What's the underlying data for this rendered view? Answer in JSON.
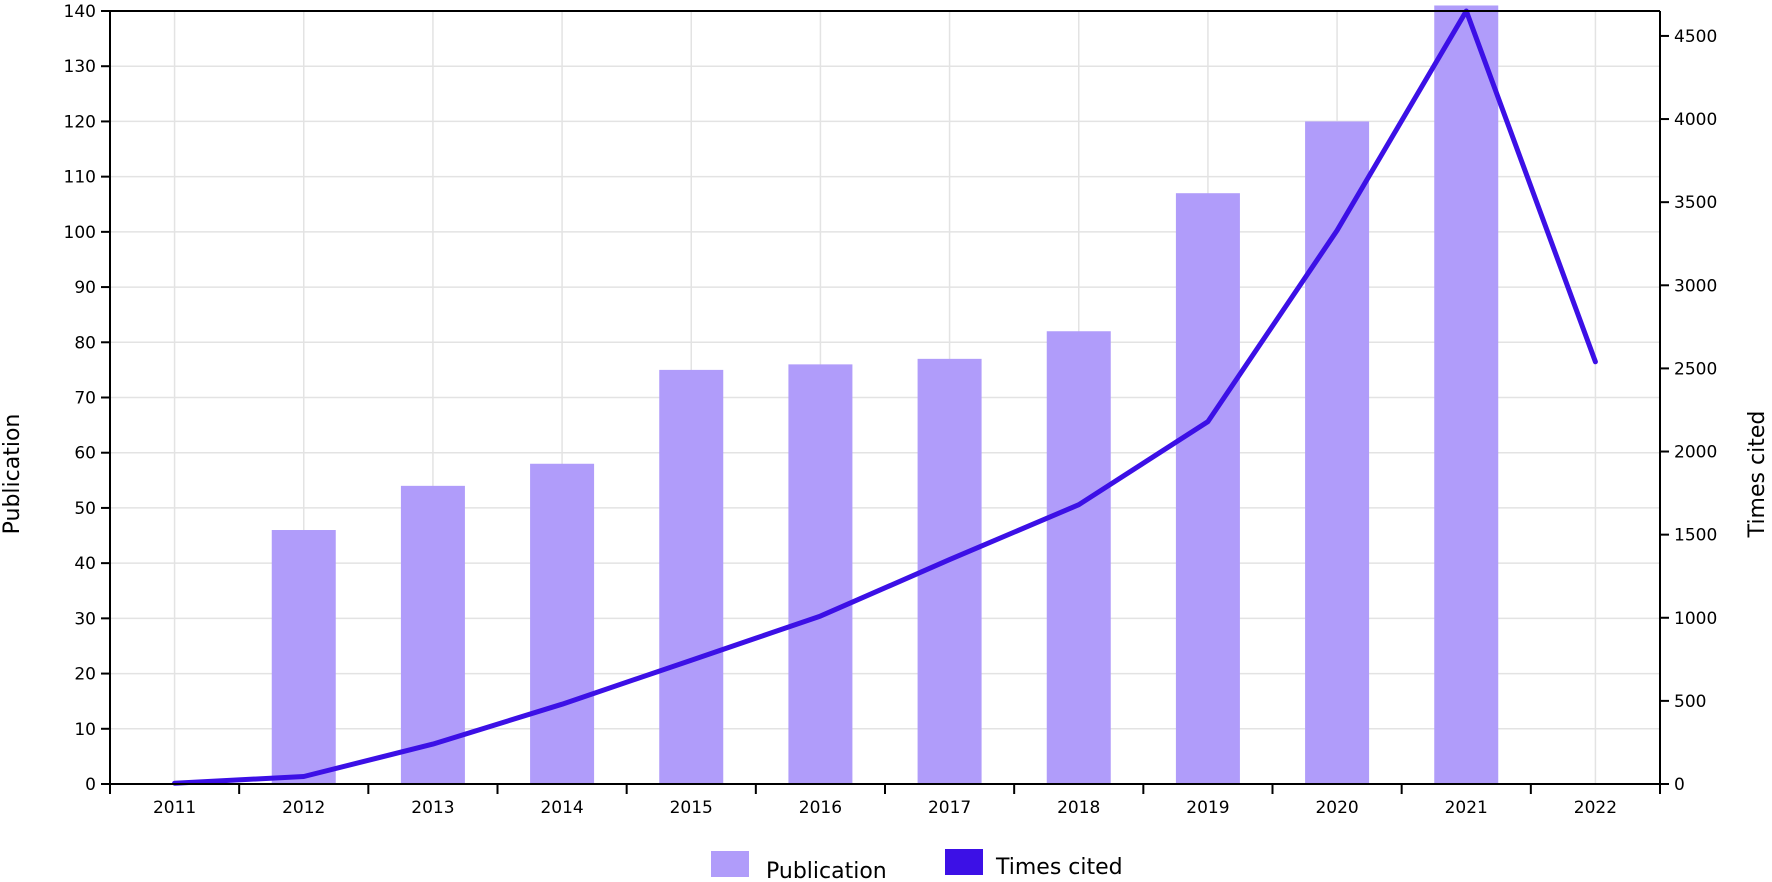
{
  "chart_data": {
    "type": "bar+line",
    "categories": [
      "2011",
      "2012",
      "2013",
      "2014",
      "2015",
      "2016",
      "2017",
      "2018",
      "2019",
      "2020",
      "2021",
      "2022"
    ],
    "series": [
      {
        "name": "Publication",
        "type": "bar",
        "axis": "left",
        "color": "#b09cfa",
        "values": [
          0,
          46,
          54,
          58,
          75,
          76,
          77,
          82,
          107,
          120,
          141,
          null
        ]
      },
      {
        "name": "Times cited",
        "type": "line",
        "axis": "right",
        "color": "#3c10e6",
        "values": [
          5,
          45,
          240,
          480,
          745,
          1010,
          1350,
          1680,
          2180,
          3330,
          4650,
          2540
        ]
      }
    ],
    "ylabel_left": "Publication",
    "ylabel_right": "Times cited",
    "ylim_left": [
      0,
      140
    ],
    "ylim_right": [
      0,
      4650
    ],
    "yticks_left": [
      0,
      10,
      20,
      30,
      40,
      50,
      60,
      70,
      80,
      90,
      100,
      110,
      120,
      130,
      140
    ],
    "yticks_right": [
      0,
      500,
      1000,
      1500,
      2000,
      2500,
      3000,
      3500,
      4000,
      4500
    ],
    "grid": true,
    "legend_position": "bottom-center"
  }
}
